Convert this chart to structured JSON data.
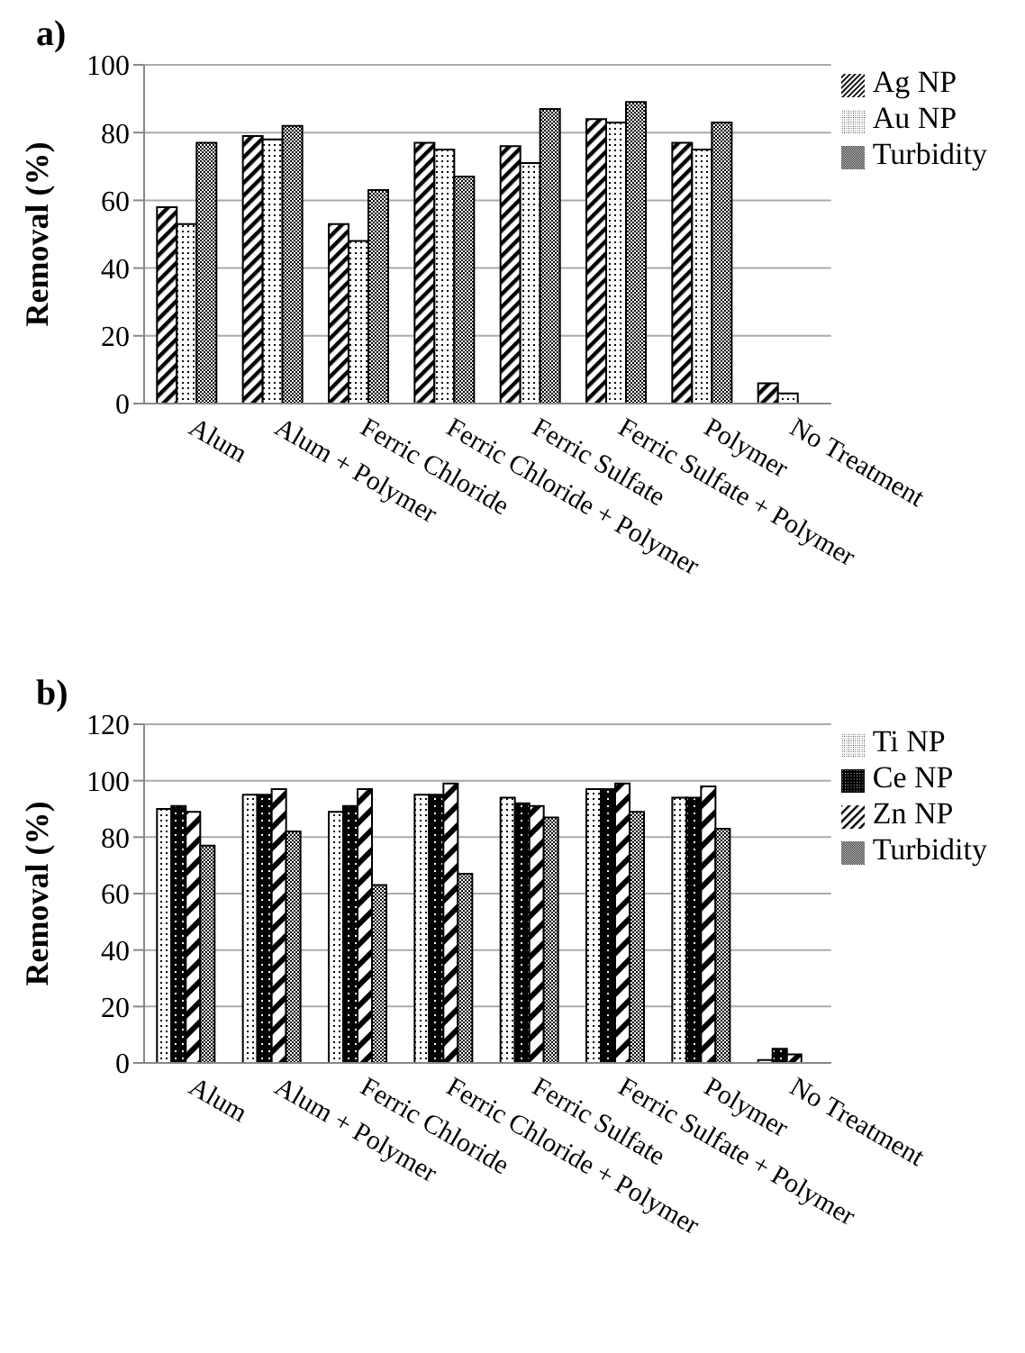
{
  "chart_data": [
    {
      "type": "bar",
      "title": "a)",
      "ylabel": "Removal (%)",
      "categories": [
        "Alum",
        "Alum + Polymer",
        "Ferric Chloride",
        "Ferric Chloride + Polymer",
        "Ferric Sulfate",
        "Ferric Sulfate + Polymer",
        "Polymer",
        "No Treatment"
      ],
      "series": [
        {
          "name": "Ag NP",
          "color": "#000000",
          "values": [
            58,
            79,
            53,
            77,
            76,
            84,
            77,
            6
          ]
        },
        {
          "name": "Au NP",
          "color": "#000000",
          "values": [
            53,
            78,
            48,
            75,
            71,
            83,
            75,
            3
          ]
        },
        {
          "name": "Turbidity",
          "color": "#000000",
          "values": [
            77,
            82,
            63,
            67,
            87,
            89,
            83,
            null
          ]
        }
      ],
      "ylim": [
        0,
        100
      ],
      "yticks": [
        0,
        20,
        40,
        60,
        80,
        100
      ],
      "grid": "y",
      "legend": "top right"
    },
    {
      "type": "bar",
      "title": "b)",
      "ylabel": "Removal (%)",
      "categories": [
        "Alum",
        "Alum + Polymer",
        "Ferric Chloride",
        "Ferric Chloride + Polymer",
        "Ferric Sulfate",
        "Ferric Sulfate + Polymer",
        "Polymer",
        "No Treatment"
      ],
      "series": [
        {
          "name": "Ti NP",
          "color": "#000000",
          "values": [
            90,
            95,
            89,
            95,
            94,
            97,
            94,
            1
          ]
        },
        {
          "name": "Ce NP",
          "color": "#000000",
          "values": [
            91,
            95,
            91,
            95,
            92,
            97,
            94,
            5
          ]
        },
        {
          "name": "Zn NP",
          "color": "#000000",
          "values": [
            89,
            97,
            97,
            99,
            91,
            99,
            98,
            3
          ]
        },
        {
          "name": "Turbidity",
          "color": "#000000",
          "values": [
            77,
            82,
            63,
            67,
            87,
            89,
            83,
            null
          ]
        }
      ],
      "ylim": [
        0,
        120
      ],
      "yticks": [
        0,
        20,
        40,
        60,
        80,
        100,
        120
      ],
      "grid": "y",
      "legend": "top right"
    }
  ]
}
